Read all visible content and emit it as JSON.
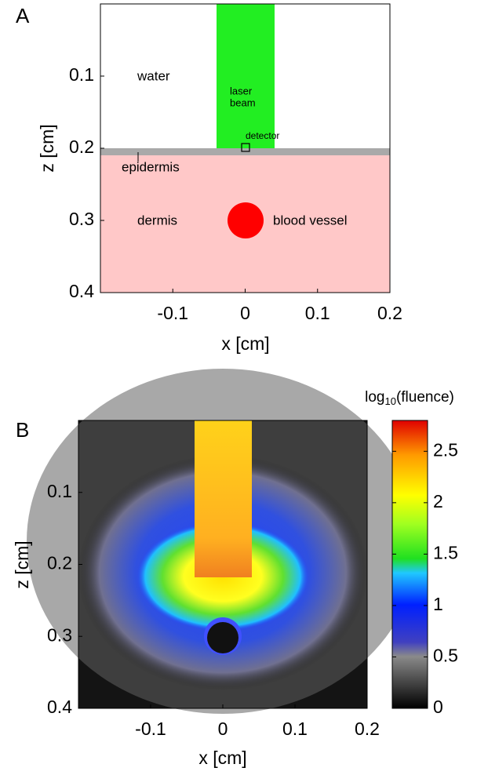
{
  "chart_data": [
    {
      "type": "schematic",
      "panel_label": "A",
      "xlabel": "x [cm]",
      "ylabel": "z [cm]",
      "xlim": [
        -0.2,
        0.2
      ],
      "ylim": [
        0,
        0.4
      ],
      "xticks": [
        -0.1,
        0,
        0.1,
        0.2
      ],
      "yticks": [
        0.1,
        0.2,
        0.3,
        0.4
      ],
      "y_inverted": true,
      "annotations": [
        "water",
        "laser",
        "beam",
        "detector",
        "epidermis",
        "dermis",
        "blood vessel"
      ]
    },
    {
      "type": "heatmap",
      "panel_label": "B",
      "xlabel": "x [cm]",
      "ylabel": "z [cm]",
      "xlim": [
        -0.2,
        0.2
      ],
      "ylim": [
        0,
        0.4
      ],
      "xticks": [
        -0.1,
        0,
        0.1,
        0.2
      ],
      "yticks": [
        0.1,
        0.2,
        0.3,
        0.4
      ],
      "y_inverted": true,
      "colorbar_label": [
        "log",
        "10",
        "(fluence)"
      ],
      "clim": [
        0,
        2.8
      ],
      "cticks": [
        0,
        0.5,
        1,
        1.5,
        2,
        2.5
      ]
    }
  ]
}
